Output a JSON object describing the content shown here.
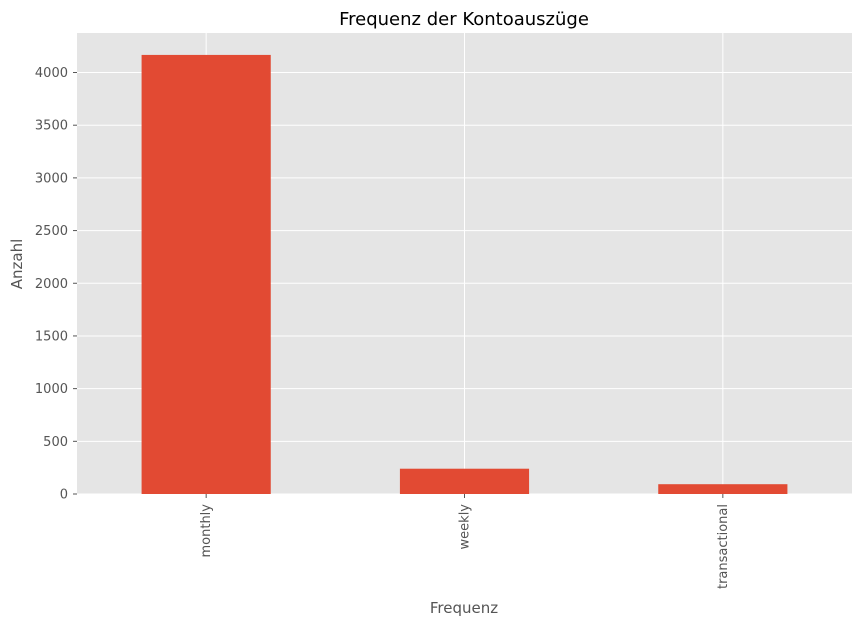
{
  "chart_data": {
    "type": "bar",
    "title": "Frequenz der Kontoauszüge",
    "xlabel": "Frequenz",
    "ylabel": "Anzahl",
    "categories": [
      "monthly",
      "weekly",
      "transactional"
    ],
    "values": [
      4167,
      240,
      93
    ],
    "ylim": [
      0,
      4375
    ],
    "yticks": [
      0,
      500,
      1000,
      1500,
      2000,
      2500,
      3000,
      3500,
      4000
    ],
    "grid": true,
    "legend": "none",
    "colors": {
      "bar": "#E24A33",
      "plot_background": "#E5E5E5",
      "grid": "#FFFFFF",
      "text": "#555555"
    }
  }
}
